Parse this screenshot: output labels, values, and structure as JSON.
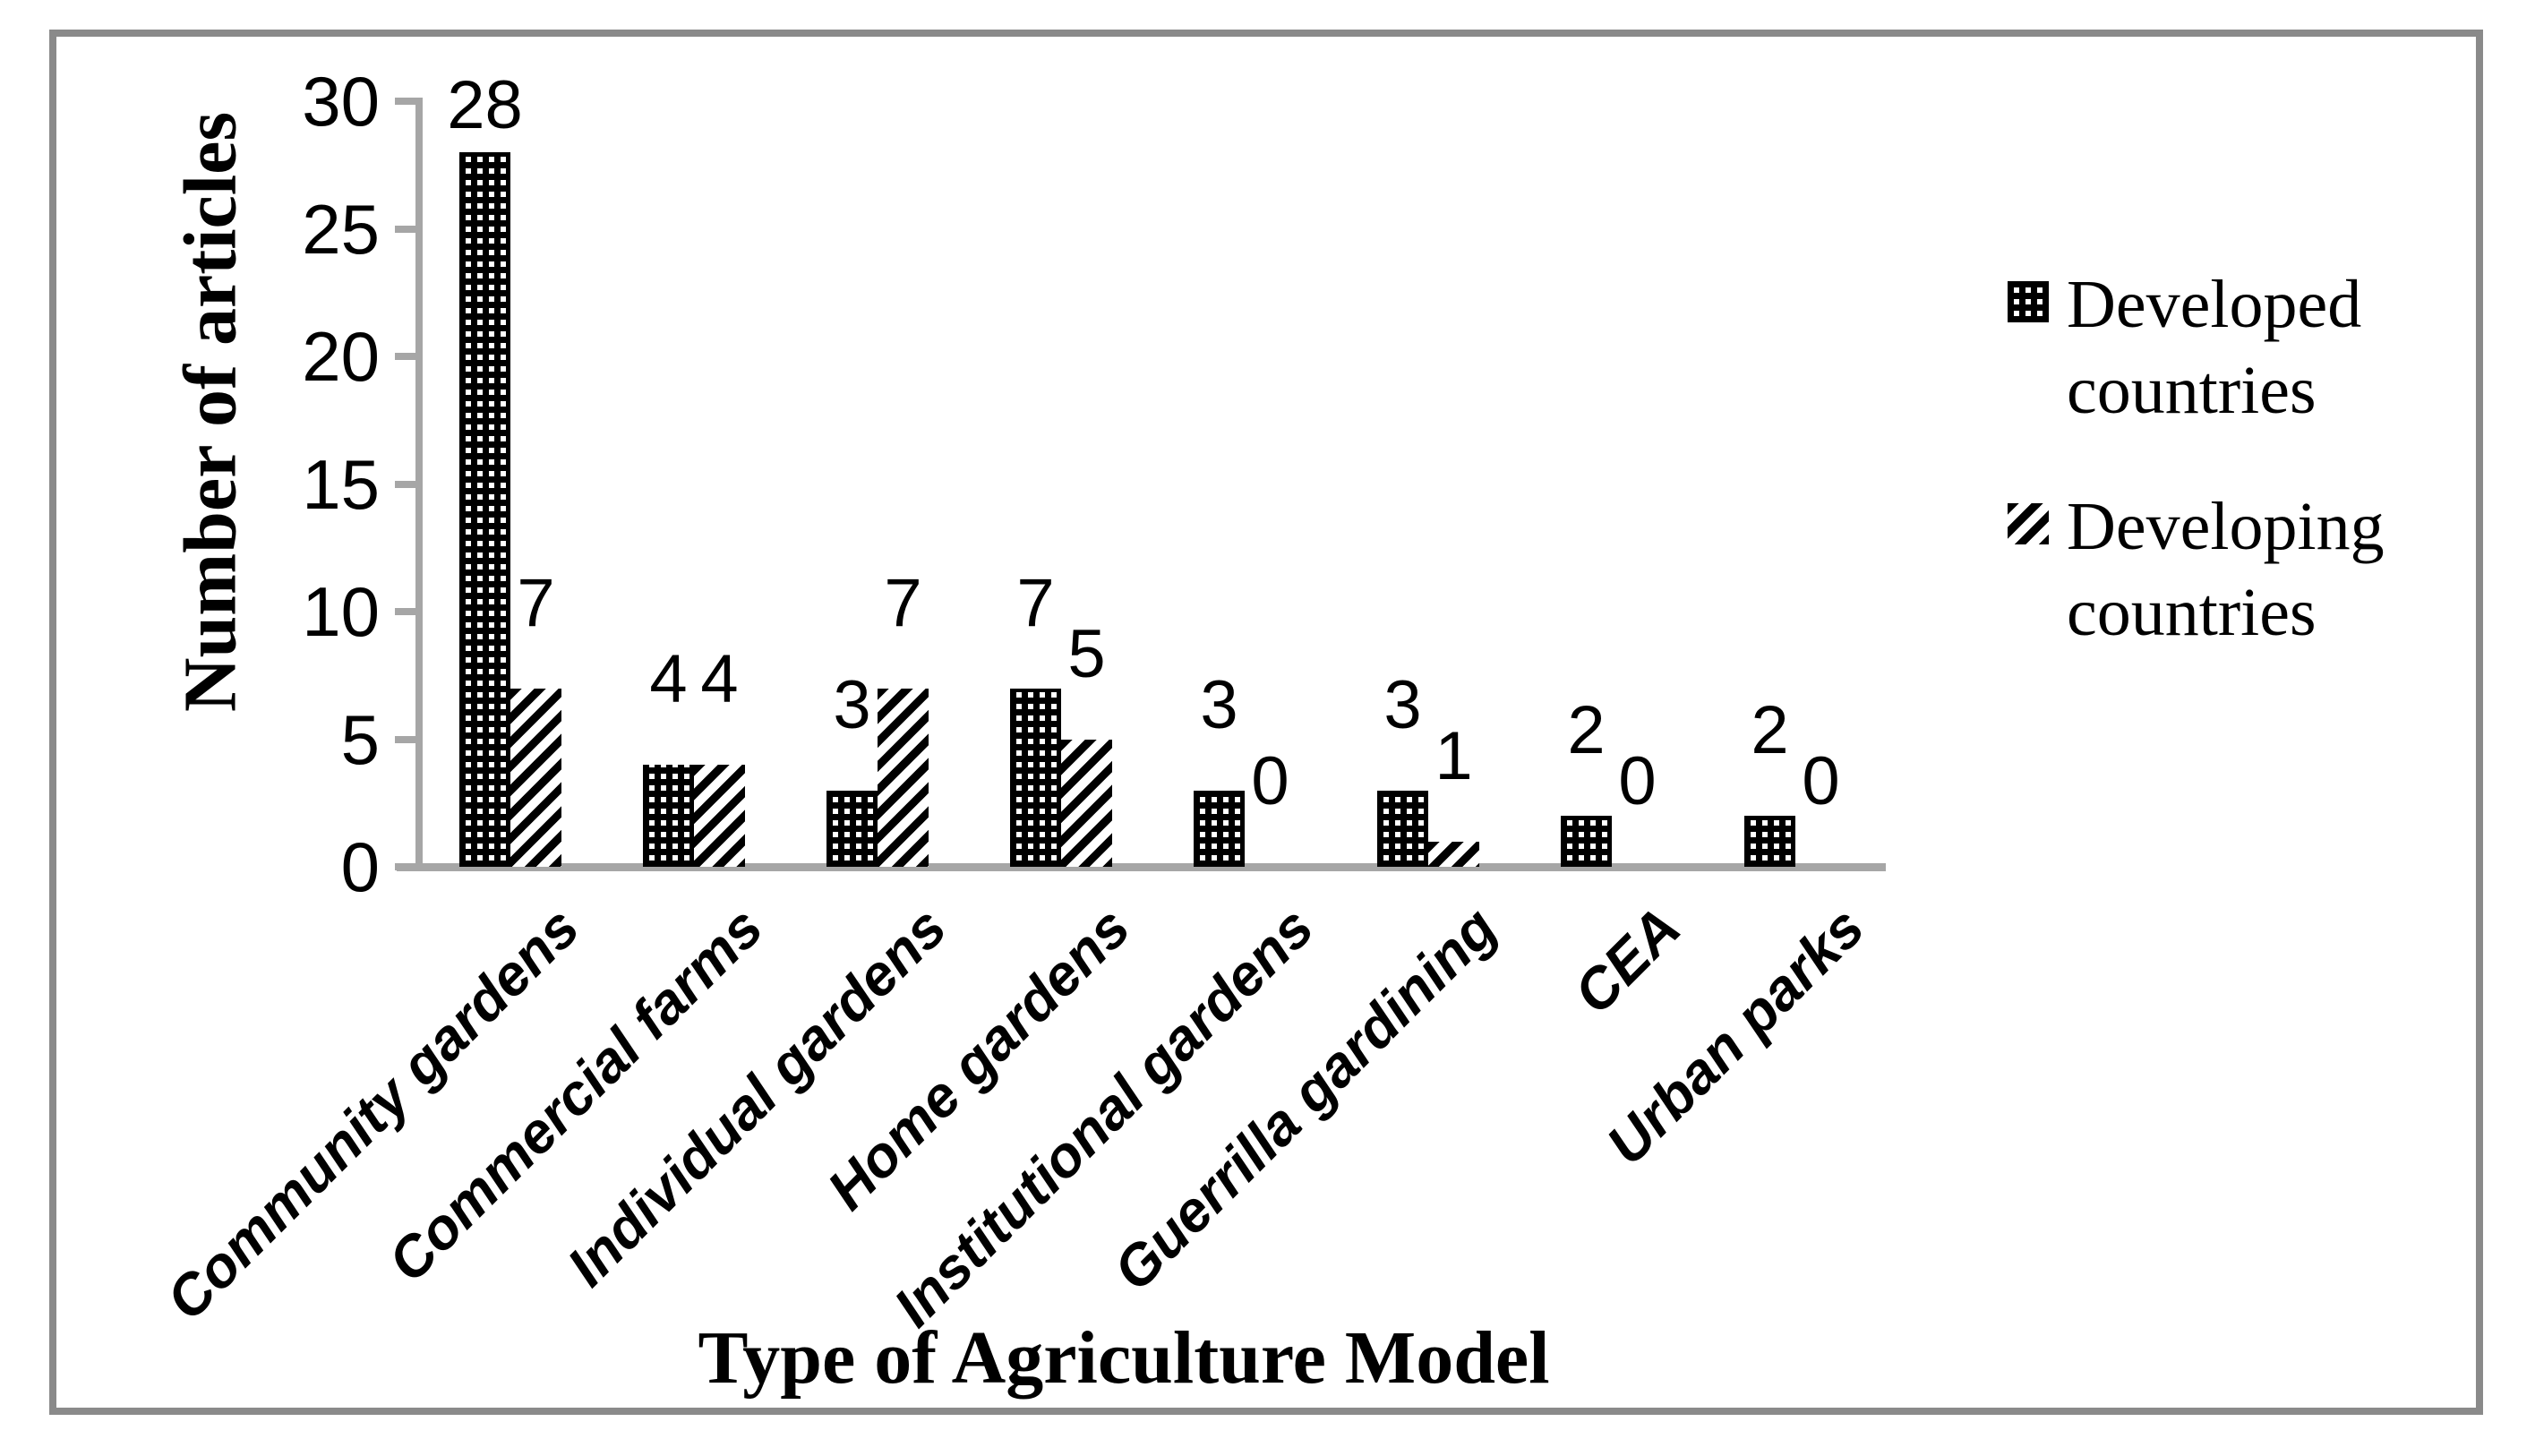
{
  "figure": {
    "y_axis_title": "Number of articles",
    "x_axis_title": "Type of Agriculture Model"
  },
  "legend": {
    "items": [
      {
        "label": "Developed countries",
        "pattern": "checker"
      },
      {
        "label": "Developing countries",
        "pattern": "diagonal-stripes"
      }
    ]
  },
  "chart_data": {
    "type": "bar",
    "title": "",
    "categories": [
      "Community gardens",
      "Commercial farms",
      "Individual gardens",
      "Home gardens",
      "Institutional gardens",
      "Guerrilla  gardining",
      "CEA",
      "Urban parks"
    ],
    "series": [
      {
        "name": "Developed countries",
        "pattern": "checker",
        "values": [
          28,
          4,
          3,
          7,
          3,
          3,
          2,
          2
        ]
      },
      {
        "name": "Developing countries",
        "pattern": "diagonal-stripes",
        "values": [
          7,
          4,
          7,
          5,
          0,
          1,
          0,
          0
        ]
      }
    ],
    "data_labels_shown": true,
    "xlabel": "Type of Agriculture Model",
    "ylabel": "Number of articles",
    "ylim": [
      0,
      30
    ],
    "yticks": [
      0,
      5,
      10,
      15,
      20,
      25,
      30
    ],
    "grid": false,
    "legend_position": "right",
    "colors": {
      "bar_foreground": "#000000",
      "bar_background": "#ffffff",
      "axis": "#a6a6a6",
      "frame_border": "#8a8a8a",
      "text": "#000000",
      "background": "#ffffff"
    }
  }
}
